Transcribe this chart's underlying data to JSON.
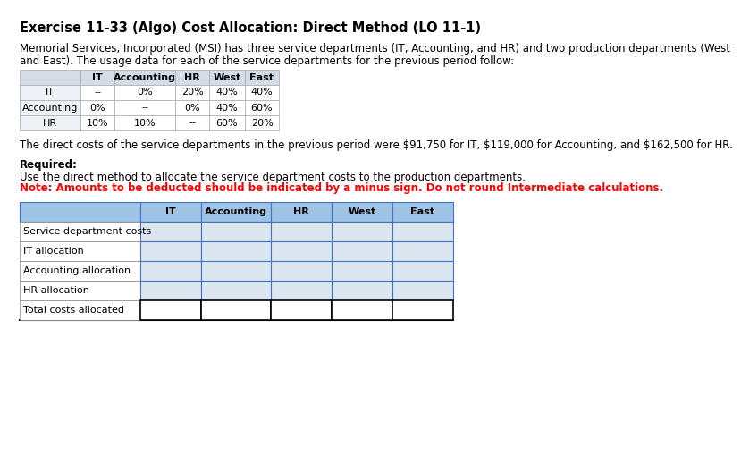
{
  "title": "Exercise 11-33 (Algo) Cost Allocation: Direct Method (LO 11-1)",
  "para1_line1": "Memorial Services, Incorporated (MSI) has three service departments (IT, Accounting, and HR) and two production departments (West",
  "para1_line2": "and East). The usage data for each of the service departments for the previous period follow:",
  "usage_headers": [
    "",
    "IT",
    "Accounting",
    "HR",
    "West",
    "East"
  ],
  "usage_rows": [
    [
      "IT",
      "--",
      "0%",
      "20%",
      "40%",
      "40%"
    ],
    [
      "Accounting",
      "0%",
      "--",
      "0%",
      "40%",
      "60%"
    ],
    [
      "HR",
      "10%",
      "10%",
      "--",
      "60%",
      "20%"
    ]
  ],
  "para2": "The direct costs of the service departments in the previous period were $91,750 for IT, $119,000 for Accounting, and $162,500 for HR.",
  "required_label": "Required:",
  "required_text": "Use the direct method to allocate the service department costs to the production departments.",
  "note_text": "Note: Amounts to be deducted should be indicated by a minus sign. Do not round Intermediate calculations.",
  "alloc_headers": [
    "",
    "IT",
    "Accounting",
    "HR",
    "West",
    "East"
  ],
  "alloc_rows": [
    "Service department costs",
    "IT allocation",
    "Accounting allocation",
    "HR allocation",
    "Total costs allocated"
  ],
  "usage_header_bg": "#d4dce8",
  "usage_row_bg": "#eef1f5",
  "alloc_header_bg": "#9dc3e6",
  "alloc_cell_bg": "#dce6f1",
  "alloc_border": "#4472c4",
  "usage_border": "#aaaaaa",
  "last_row_border": "#000000",
  "title_fs": 10.5,
  "body_fs": 8.5,
  "table_fs": 8.0
}
